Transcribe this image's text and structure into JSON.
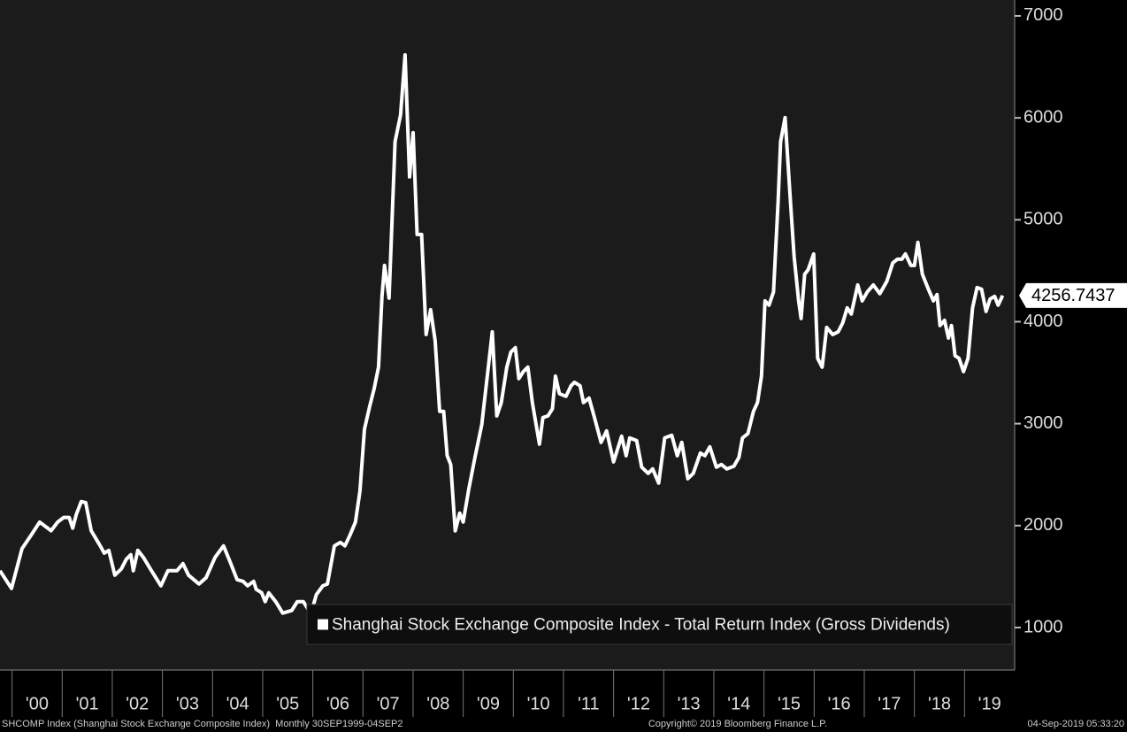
{
  "chart_data": {
    "type": "line",
    "x": [
      1999.76,
      1999.99,
      2000.2,
      2000.38,
      2000.55,
      2000.78,
      2000.91,
      2001.03,
      2001.14,
      2001.21,
      2001.28,
      2001.38,
      2001.47,
      2001.58,
      2001.74,
      2001.84,
      2001.93,
      2002.05,
      2002.18,
      2002.28,
      2002.37,
      2002.42,
      2002.51,
      2002.62,
      2002.76,
      2002.97,
      2003.11,
      2003.29,
      2003.41,
      2003.52,
      2003.73,
      2003.87,
      2004.05,
      2004.22,
      2004.35,
      2004.49,
      2004.61,
      2004.7,
      2004.82,
      2004.87,
      2004.98,
      2005.05,
      2005.12,
      2005.26,
      2005.4,
      2005.58,
      2005.69,
      2005.81,
      2005.9,
      2005.99,
      2006.07,
      2006.2,
      2006.29,
      2006.43,
      2006.55,
      2006.64,
      2006.74,
      2006.85,
      2006.94,
      2007.03,
      2007.13,
      2007.22,
      2007.31,
      2007.38,
      2007.43,
      2007.52,
      2007.64,
      2007.75,
      2007.84,
      2007.93,
      2008.0,
      2008.08,
      2008.17,
      2008.26,
      2008.35,
      2008.44,
      2008.53,
      2008.61,
      2008.68,
      2008.75,
      2008.84,
      2008.93,
      2009.0,
      2009.11,
      2009.23,
      2009.37,
      2009.5,
      2009.58,
      2009.67,
      2009.76,
      2009.87,
      2009.95,
      2010.04,
      2010.11,
      2010.2,
      2010.29,
      2010.38,
      2010.52,
      2010.59,
      2010.69,
      2010.78,
      2010.84,
      2010.92,
      2011.05,
      2011.15,
      2011.22,
      2011.33,
      2011.4,
      2011.51,
      2011.61,
      2011.75,
      2011.86,
      2012.0,
      2012.16,
      2012.25,
      2012.32,
      2012.46,
      2012.56,
      2012.69,
      2012.78,
      2012.9,
      2013.02,
      2013.16,
      2013.27,
      2013.36,
      2013.48,
      2013.59,
      2013.73,
      2013.82,
      2013.92,
      2014.05,
      2014.15,
      2014.26,
      2014.4,
      2014.5,
      2014.57,
      2014.68,
      2014.79,
      2014.87,
      2014.95,
      2015.02,
      2015.1,
      2015.19,
      2015.28,
      2015.33,
      2015.42,
      2015.53,
      2015.6,
      2015.69,
      2015.74,
      2015.81,
      2015.88,
      2015.99,
      2016.07,
      2016.16,
      2016.25,
      2016.37,
      2016.48,
      2016.57,
      2016.66,
      2016.74,
      2016.87,
      2016.96,
      2017.06,
      2017.18,
      2017.31,
      2017.45,
      2017.57,
      2017.66,
      2017.75,
      2017.82,
      2017.93,
      2018.0,
      2018.07,
      2018.16,
      2018.28,
      2018.38,
      2018.45,
      2018.51,
      2018.6,
      2018.68,
      2018.74,
      2018.81,
      2018.89,
      2018.98,
      2019.07,
      2019.16,
      2019.25,
      2019.34,
      2019.43,
      2019.51,
      2019.6,
      2019.67,
      2019.76
    ],
    "series": [
      {
        "name": "Shanghai Stock Exchange Composite Index - Total Return Index (Gross Dividends)",
        "color": "#ffffff",
        "values": [
          1557,
          1384,
          1775,
          1905,
          2035,
          1950,
          2035,
          2080,
          2080,
          1975,
          2105,
          2235,
          2226,
          1950,
          1818,
          1730,
          1757,
          1514,
          1575,
          1670,
          1714,
          1557,
          1757,
          1688,
          1575,
          1410,
          1557,
          1557,
          1627,
          1514,
          1427,
          1488,
          1688,
          1801,
          1644,
          1470,
          1453,
          1410,
          1453,
          1375,
          1341,
          1254,
          1341,
          1254,
          1141,
          1167,
          1254,
          1254,
          1184,
          1184,
          1323,
          1410,
          1427,
          1801,
          1835,
          1801,
          1905,
          2035,
          2339,
          2946,
          3163,
          3337,
          3554,
          4249,
          4552,
          4231,
          5767,
          6028,
          6618,
          5420,
          5854,
          4856,
          4856,
          3875,
          4118,
          3814,
          3120,
          3120,
          2686,
          2599,
          1948,
          2122,
          2035,
          2356,
          2660,
          2990,
          3554,
          3901,
          3076,
          3207,
          3554,
          3702,
          3745,
          3441,
          3511,
          3554,
          3207,
          2799,
          3059,
          3076,
          3146,
          3467,
          3294,
          3268,
          3372,
          3406,
          3372,
          3207,
          3250,
          3076,
          2816,
          2929,
          2625,
          2877,
          2686,
          2860,
          2834,
          2573,
          2512,
          2556,
          2417,
          2860,
          2886,
          2686,
          2816,
          2460,
          2512,
          2712,
          2686,
          2773,
          2573,
          2599,
          2556,
          2582,
          2669,
          2860,
          2903,
          3120,
          3207,
          3467,
          4205,
          4162,
          4292,
          5160,
          5767,
          6002,
          5160,
          4639,
          4205,
          4031,
          4465,
          4509,
          4665,
          3641,
          3554,
          3944,
          3875,
          3901,
          3988,
          4136,
          4075,
          4361,
          4205,
          4292,
          4361,
          4275,
          4396,
          4578,
          4613,
          4613,
          4665,
          4552,
          4552,
          4778,
          4465,
          4318,
          4205,
          4266,
          3962,
          4014,
          3840,
          3962,
          3667,
          3641,
          3511,
          3641,
          4136,
          4335,
          4318,
          4101,
          4223,
          4249,
          4162,
          4256.7437
        ]
      }
    ],
    "xlim": [
      1999.76,
      2020.0
    ],
    "xticks": [
      {
        "value": 2000.5,
        "label": "'00"
      },
      {
        "value": 2001.5,
        "label": "'01"
      },
      {
        "value": 2002.5,
        "label": "'02"
      },
      {
        "value": 2003.5,
        "label": "'03"
      },
      {
        "value": 2004.5,
        "label": "'04"
      },
      {
        "value": 2005.5,
        "label": "'05"
      },
      {
        "value": 2006.5,
        "label": "'06"
      },
      {
        "value": 2007.5,
        "label": "'07"
      },
      {
        "value": 2008.5,
        "label": "'08"
      },
      {
        "value": 2009.5,
        "label": "'09"
      },
      {
        "value": 2010.5,
        "label": "'10"
      },
      {
        "value": 2011.5,
        "label": "'11"
      },
      {
        "value": 2012.5,
        "label": "'12"
      },
      {
        "value": 2013.5,
        "label": "'13"
      },
      {
        "value": 2014.5,
        "label": "'14"
      },
      {
        "value": 2015.5,
        "label": "'15"
      },
      {
        "value": 2016.5,
        "label": "'16"
      },
      {
        "value": 2017.5,
        "label": "'17"
      },
      {
        "value": 2018.5,
        "label": "'18"
      },
      {
        "value": 2019.5,
        "label": "'19"
      }
    ],
    "ylim": [
      583,
      7156
    ],
    "yticks": [
      1000,
      2000,
      3000,
      4000,
      5000,
      6000,
      7000
    ],
    "legend": "lower right"
  },
  "footer": {
    "left": "SHCOMP Index (Shanghai Stock Exchange Composite Index)  Monthly 30SEP1999-04SEP2",
    "center": "Copyright© 2019 Bloomberg Finance L.P.",
    "right": "04-Sep-2019 05:33:20"
  }
}
